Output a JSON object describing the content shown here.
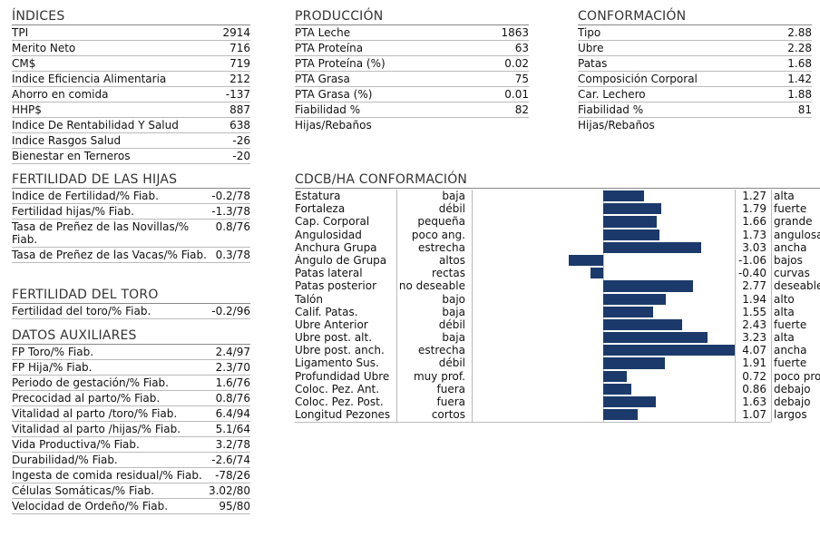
{
  "indices": {
    "title": "ÍNDICES",
    "rows": [
      {
        "label": "TPI",
        "value": "2914"
      },
      {
        "label": "Merito Neto",
        "value": "716"
      },
      {
        "label": "CM$",
        "value": "719"
      },
      {
        "label": "Indice Eficiencia Alimentaria",
        "value": "212"
      },
      {
        "label": "Ahorro en comida",
        "value": "-137"
      },
      {
        "label": "HHP$",
        "value": "887"
      },
      {
        "label": "Indice De Rentabilidad Y Salud",
        "value": "638"
      },
      {
        "label": "Indice Rasgos Salud",
        "value": "-26"
      },
      {
        "label": "Bienestar en Terneros",
        "value": "-20"
      }
    ]
  },
  "produccion": {
    "title": "PRODUCCIÓN",
    "rows": [
      {
        "label": "PTA Leche",
        "value": "1863"
      },
      {
        "label": "PTA Proteína",
        "value": "63"
      },
      {
        "label": "PTA Proteína (%)",
        "value": "0.02"
      },
      {
        "label": "PTA Grasa",
        "value": "75"
      },
      {
        "label": "PTA Grasa (%)",
        "value": "0.01"
      },
      {
        "label": "Fiabilidad %",
        "value": "82"
      }
    ],
    "footer": "Hijas/Rebaños"
  },
  "conformacion": {
    "title": "CONFORMACIÓN",
    "rows": [
      {
        "label": "Tipo",
        "value": "2.88"
      },
      {
        "label": "Ubre",
        "value": "2.28"
      },
      {
        "label": "Patas",
        "value": "1.68"
      },
      {
        "label": "Composición Corporal",
        "value": "1.42"
      },
      {
        "label": "Car. Lechero",
        "value": "1.88"
      },
      {
        "label": "Fiabilidad %",
        "value": "81"
      }
    ],
    "footer": "Hijas/Rebaños"
  },
  "fertilidad_hijas": {
    "title": "FERTILIDAD DE LAS HIJAS",
    "rows": [
      {
        "label": "Indice de Fertilidad/% Fiab.",
        "value": "-0.2/78"
      },
      {
        "label": "Fertilidad hijas/% Fiab.",
        "value": "-1.3/78"
      },
      {
        "label": "Tasa de Preñez de las Novillas/% Fiab.",
        "value": "0.8/76"
      },
      {
        "label": "Tasa de Preñez de las Vacas/% Fiab.",
        "value": "0.3/78"
      }
    ]
  },
  "fertilidad_toro": {
    "title": "FERTILIDAD DEL TORO",
    "rows": [
      {
        "label": "Fertilidad del toro/% Fiab.",
        "value": "-0.2/96"
      }
    ]
  },
  "datos_auxiliares": {
    "title": "DATOS AUXILIARES",
    "rows": [
      {
        "label": "FP Toro/% Fiab.",
        "value": "2.4/97"
      },
      {
        "label": "FP Hija/% Fiab.",
        "value": "2.3/70"
      },
      {
        "label": "Periodo de gestación/% Fiab.",
        "value": "1.6/76"
      },
      {
        "label": "Precocidad al parto/% Fiab.",
        "value": "0.8/76"
      },
      {
        "label": "Vitalidad al parto /toro/% Fiab.",
        "value": "6.4/94"
      },
      {
        "label": "Vitalidad al parto /hijas/% Fiab.",
        "value": "5.1/64"
      },
      {
        "label": "Vida Productiva/% Fiab.",
        "value": "3.2/78"
      },
      {
        "label": "Durabilidad/% Fiab.",
        "value": "-2.6/74"
      },
      {
        "label": "Ingesta de comida residual/% Fiab.",
        "value": "-78/26"
      },
      {
        "label": "Células Somáticas/% Fiab.",
        "value": "3.02/80"
      },
      {
        "label": "Velocidad de Ordeño/% Fiab.",
        "value": "95/80"
      }
    ]
  },
  "cdcb": {
    "title": "CDCB/HA CONFORMACIÓN",
    "bar_color": "#1b3a6b",
    "traits": [
      {
        "trait": "Estatura",
        "low": "baja",
        "value": 1.27,
        "value_label": "1.27",
        "high": "alta"
      },
      {
        "trait": "Fortaleza",
        "low": "débil",
        "value": 1.79,
        "value_label": "1.79",
        "high": "fuerte"
      },
      {
        "trait": "Cap. Corporal",
        "low": "pequeña",
        "value": 1.66,
        "value_label": "1.66",
        "high": "grande"
      },
      {
        "trait": "Angulosidad",
        "low": "poco ang.",
        "value": 1.73,
        "value_label": "1.73",
        "high": "angulosa"
      },
      {
        "trait": "Anchura Grupa",
        "low": "estrecha",
        "value": 3.03,
        "value_label": "3.03",
        "high": "ancha"
      },
      {
        "trait": "Ángulo de Grupa",
        "low": "altos",
        "value": -1.06,
        "value_label": "-1.06",
        "high": "bajos"
      },
      {
        "trait": "Patas lateral",
        "low": "rectas",
        "value": -0.4,
        "value_label": "-0.40",
        "high": "curvas"
      },
      {
        "trait": "Patas posterior",
        "low": "no deseable",
        "value": 2.77,
        "value_label": "2.77",
        "high": "deseable"
      },
      {
        "trait": "Talón",
        "low": "bajo",
        "value": 1.94,
        "value_label": "1.94",
        "high": "alto"
      },
      {
        "trait": "Calif. Patas.",
        "low": "baja",
        "value": 1.55,
        "value_label": "1.55",
        "high": "alta"
      },
      {
        "trait": "Ubre Anterior",
        "low": "débil",
        "value": 2.43,
        "value_label": "2.43",
        "high": "fuerte"
      },
      {
        "trait": "Ubre post. alt.",
        "low": "baja",
        "value": 3.23,
        "value_label": "3.23",
        "high": "alta"
      },
      {
        "trait": "Ubre post. anch.",
        "low": "estrecha",
        "value": 4.07,
        "value_label": "4.07",
        "high": "ancha"
      },
      {
        "trait": "Ligamento Sus.",
        "low": "débil",
        "value": 1.91,
        "value_label": "1.91",
        "high": "fuerte"
      },
      {
        "trait": "Profundidad Ubre",
        "low": "muy prof.",
        "value": 0.72,
        "value_label": "0.72",
        "high": "poco prof."
      },
      {
        "trait": "Coloc. Pez. Ant.",
        "low": "fuera",
        "value": 0.86,
        "value_label": "0.86",
        "high": "debajo"
      },
      {
        "trait": "Coloc. Pez. Post.",
        "low": "fuera",
        "value": 1.63,
        "value_label": "1.63",
        "high": "debajo"
      },
      {
        "trait": "Longitud Pezones",
        "low": "cortos",
        "value": 1.07,
        "value_label": "1.07",
        "high": "largos"
      }
    ]
  }
}
